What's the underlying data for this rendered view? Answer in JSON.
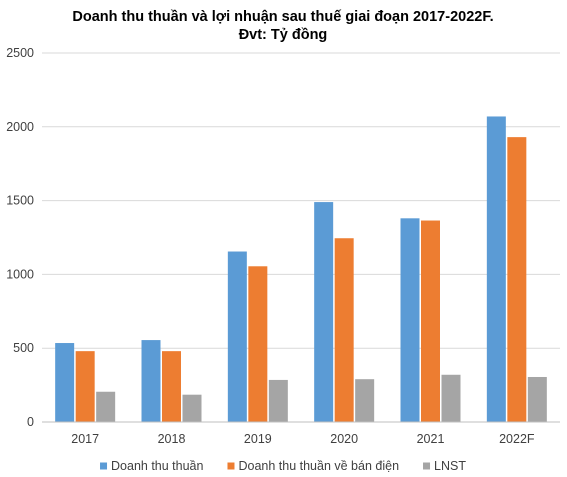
{
  "chart_data": {
    "type": "bar",
    "title": "Doanh thu thuần và lợi nhuận sau thuế giai đoạn 2017-2022F.",
    "subtitle": "Đvt: Tỷ đồng",
    "categories": [
      "2017",
      "2018",
      "2019",
      "2020",
      "2021",
      "2022F"
    ],
    "series": [
      {
        "name": "Doanh thu thuần",
        "color": "#5b9bd5",
        "values": [
          535,
          555,
          1155,
          1490,
          1380,
          2070
        ]
      },
      {
        "name": "Doanh thu thuần về bán điện",
        "color": "#ed7d31",
        "values": [
          480,
          480,
          1055,
          1245,
          1365,
          1930
        ]
      },
      {
        "name": "LNST",
        "color": "#a5a5a5",
        "values": [
          205,
          185,
          285,
          290,
          320,
          305
        ]
      }
    ],
    "ylim": [
      0,
      2500
    ],
    "yticks": [
      "0",
      "500",
      "1000",
      "1500",
      "2000",
      "2500"
    ],
    "xlabel": "",
    "ylabel": "",
    "grid": true,
    "legend_position": "bottom"
  }
}
